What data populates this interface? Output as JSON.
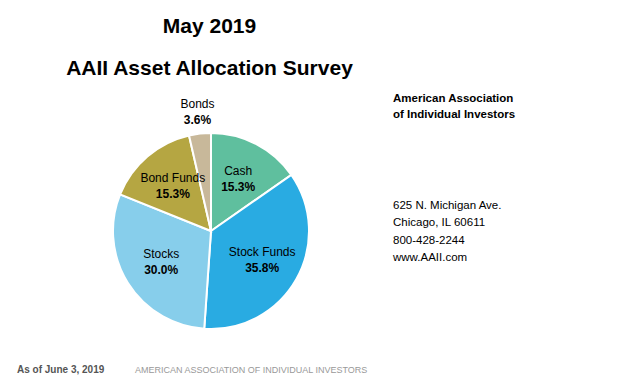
{
  "chart_data": {
    "type": "pie",
    "title": "May 2019",
    "subtitle": "AAII Asset Allocation Survey",
    "categories": [
      "Cash",
      "Stock Funds",
      "Stocks",
      "Bond Funds",
      "Bonds"
    ],
    "values": [
      15.3,
      35.8,
      30.0,
      15.3,
      3.6
    ],
    "value_labels": [
      "15.3%",
      "35.8%",
      "30.0%",
      "15.3%",
      "3.6%"
    ],
    "colors": [
      "#5FBF9E",
      "#29ABE2",
      "#87CEEB",
      "#B5A642",
      "#C8B89A"
    ],
    "data_labels": true,
    "annotations": [
      "American Association\nof Individual Investors",
      "625 N. Michigan Ave.\nChicago, IL 60611\n800-428-2244\nwww.AAII.com",
      "As of June 3, 2019",
      "AMERICAN ASSOCIATION OF INDIVIDUAL INVESTORS"
    ]
  }
}
